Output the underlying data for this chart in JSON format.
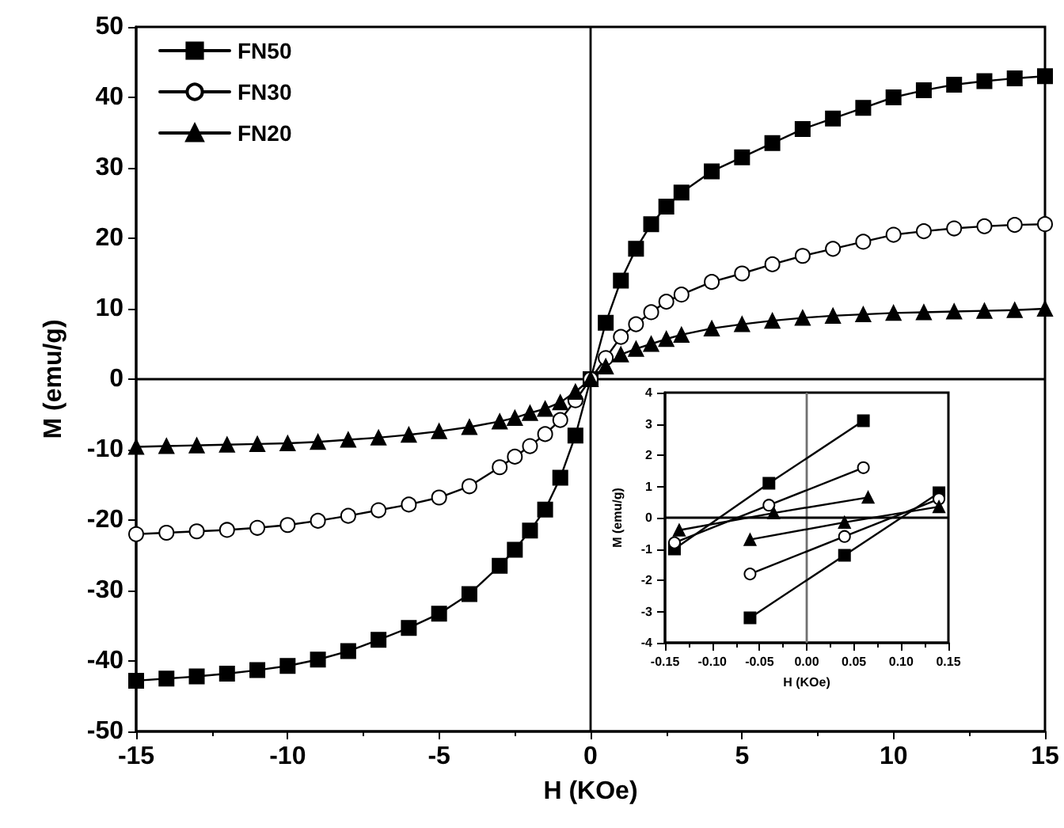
{
  "chart_data": [
    {
      "type": "line",
      "xlabel": "H (KOe)",
      "ylabel": "M (emu/g)",
      "xlim": [
        -15,
        15
      ],
      "xticks": [
        -15,
        -10,
        -5,
        0,
        5,
        10,
        15
      ],
      "ylim": [
        -50,
        50
      ],
      "yticks": [
        -50,
        -40,
        -30,
        -20,
        -10,
        0,
        10,
        20,
        30,
        40,
        50
      ],
      "legend": "top left",
      "grid": false,
      "ref_lines": [
        {
          "axis": "x",
          "value": 0
        },
        {
          "axis": "y",
          "value": 0
        }
      ],
      "series": [
        {
          "name": "FN50",
          "color": "#000000",
          "marker": "square",
          "x": [
            -15,
            -14,
            -13,
            -12,
            -11,
            -10,
            -9,
            -8,
            -7,
            -6,
            -5,
            -4,
            -3,
            -2.5,
            -2,
            -1.5,
            -1,
            -0.5,
            0,
            0.5,
            1,
            1.5,
            2,
            2.5,
            3,
            4,
            5,
            6,
            7,
            8,
            9,
            10,
            11,
            12,
            13,
            14,
            15
          ],
          "values": [
            -42.8,
            -42.5,
            -42.2,
            -41.8,
            -41.3,
            -40.7,
            -39.8,
            -38.6,
            -37,
            -35.3,
            -33.3,
            -30.5,
            -26.5,
            -24.2,
            -21.5,
            -18.5,
            -14,
            -8,
            0,
            8,
            14,
            18.5,
            22,
            24.5,
            26.5,
            29.5,
            31.5,
            33.5,
            35.5,
            37,
            38.5,
            40,
            41,
            41.8,
            42.3,
            42.7,
            43
          ]
        },
        {
          "name": "FN30",
          "color": "#000000",
          "marker": "circle",
          "x": [
            -15,
            -14,
            -13,
            -12,
            -11,
            -10,
            -9,
            -8,
            -7,
            -6,
            -5,
            -4,
            -3,
            -2.5,
            -2,
            -1.5,
            -1,
            -0.5,
            0,
            0.5,
            1,
            1.5,
            2,
            2.5,
            3,
            4,
            5,
            6,
            7,
            8,
            9,
            10,
            11,
            12,
            13,
            14,
            15
          ],
          "values": [
            -22,
            -21.8,
            -21.6,
            -21.4,
            -21.1,
            -20.7,
            -20.1,
            -19.4,
            -18.6,
            -17.8,
            -16.8,
            -15.2,
            -12.5,
            -11,
            -9.5,
            -7.8,
            -5.8,
            -3,
            0,
            3,
            6,
            7.8,
            9.5,
            11,
            12,
            13.8,
            15,
            16.3,
            17.5,
            18.5,
            19.5,
            20.5,
            21,
            21.4,
            21.7,
            21.9,
            22
          ]
        },
        {
          "name": "FN20",
          "color": "#000000",
          "marker": "triangle",
          "x": [
            -15,
            -14,
            -13,
            -12,
            -11,
            -10,
            -9,
            -8,
            -7,
            -6,
            -5,
            -4,
            -3,
            -2.5,
            -2,
            -1.5,
            -1,
            -0.5,
            0,
            0.5,
            1,
            1.5,
            2,
            2.5,
            3,
            4,
            5,
            6,
            7,
            8,
            9,
            10,
            11,
            12,
            13,
            14,
            15
          ],
          "values": [
            -9.6,
            -9.5,
            -9.4,
            -9.3,
            -9.2,
            -9.1,
            -8.9,
            -8.6,
            -8.3,
            -7.9,
            -7.4,
            -6.8,
            -6,
            -5.5,
            -4.8,
            -4.2,
            -3.3,
            -1.8,
            0,
            1.8,
            3.5,
            4.3,
            5,
            5.7,
            6.3,
            7.2,
            7.8,
            8.3,
            8.7,
            9,
            9.2,
            9.4,
            9.5,
            9.6,
            9.7,
            9.8,
            10
          ]
        }
      ]
    },
    {
      "type": "line",
      "xlabel": "H (KOe)",
      "ylabel": "M (emu/g)",
      "xlim": [
        -0.15,
        0.15
      ],
      "xticks": [
        -0.15,
        {
          "value": -0.1,
          "label": "-0.10"
        },
        -0.05,
        {
          "value": 0,
          "label": "0.00"
        },
        0.05,
        {
          "value": 0.1,
          "label": "0.10"
        },
        0.15
      ],
      "ylim": [
        -4,
        4
      ],
      "yticks": [
        -4,
        -3,
        -2,
        -1,
        0,
        1,
        2,
        3,
        4
      ],
      "legend": false,
      "grid": false,
      "ref_lines": [
        {
          "axis": "x",
          "value": 0,
          "color": "#707070"
        },
        {
          "axis": "y",
          "value": 0,
          "color": "#000000"
        }
      ],
      "series": [
        {
          "color": "#000000",
          "marker": "square",
          "x": [
            -0.14,
            -0.04,
            0.06
          ],
          "values": [
            -1,
            1.1,
            3.1
          ]
        },
        {
          "color": "#000000",
          "marker": "square",
          "x": [
            -0.06,
            0.04,
            0.14
          ],
          "values": [
            -3.2,
            -1.2,
            0.8
          ]
        },
        {
          "color": "#000000",
          "marker": "circle",
          "x": [
            -0.14,
            -0.04,
            0.06
          ],
          "values": [
            -0.8,
            0.4,
            1.6
          ]
        },
        {
          "color": "#000000",
          "marker": "circle",
          "x": [
            -0.06,
            0.04,
            0.14
          ],
          "values": [
            -1.8,
            -0.6,
            0.6
          ]
        },
        {
          "color": "#000000",
          "marker": "triangle",
          "x": [
            -0.135,
            -0.035,
            0.065
          ],
          "values": [
            -0.4,
            0.15,
            0.65
          ]
        },
        {
          "color": "#000000",
          "marker": "triangle",
          "x": [
            -0.06,
            0.04,
            0.14
          ],
          "values": [
            -0.7,
            -0.15,
            0.35
          ]
        }
      ]
    }
  ]
}
